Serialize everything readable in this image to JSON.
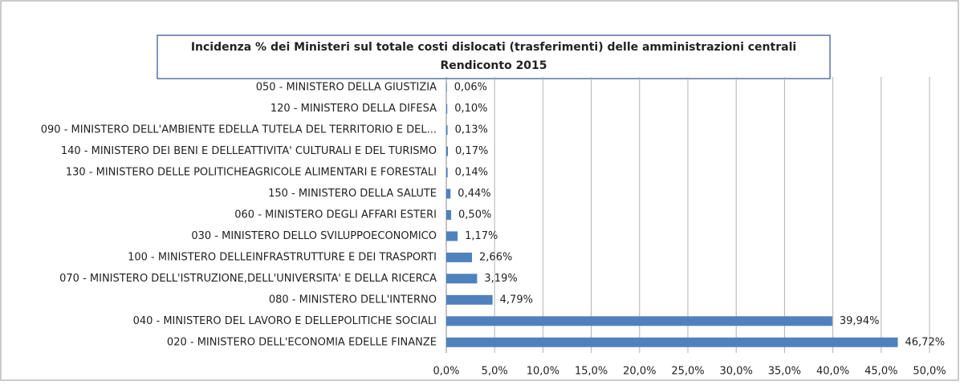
{
  "chart_data": {
    "type": "bar",
    "orientation": "horizontal",
    "title": "Incidenza % dei Ministeri sul totale costi dislocati (trasferimenti) delle amministrazioni centrali",
    "subtitle": "Rendiconto 2015",
    "categories": [
      "050 - MINISTERO DELLA GIUSTIZIA",
      "120 - MINISTERO DELLA DIFESA",
      "090 - MINISTERO DELL'AMBIENTE EDELLA TUTELA DEL TERRITORIO E DEL...",
      "140 - MINISTERO DEI BENI E DELLEATTIVITA' CULTURALI E DEL TURISMO",
      "130 - MINISTERO DELLE POLITICHEAGRICOLE ALIMENTARI E FORESTALI",
      "150 - MINISTERO DELLA SALUTE",
      "060 - MINISTERO DEGLI AFFARI ESTERI",
      "030 - MINISTERO DELLO SVILUPPOECONOMICO",
      "100 - MINISTERO DELLEINFRASTRUTTURE E DEI TRASPORTI",
      "070 - MINISTERO DELL'ISTRUZIONE,DELL'UNIVERSITA' E DELLA RICERCA",
      "080 - MINISTERO DELL'INTERNO",
      "040 - MINISTERO DEL LAVORO E DELLEPOLITICHE SOCIALI",
      "020 - MINISTERO DELL'ECONOMIA EDELLE FINANZE"
    ],
    "values": [
      0.06,
      0.1,
      0.13,
      0.17,
      0.14,
      0.44,
      0.5,
      1.17,
      2.66,
      3.19,
      4.79,
      39.94,
      46.72
    ],
    "value_labels": [
      "0,06%",
      "0,10%",
      "0,13%",
      "0,17%",
      "0,14%",
      "0,44%",
      "0,50%",
      "1,17%",
      "2,66%",
      "3,19%",
      "4,79%",
      "39,94%",
      "46,72%"
    ],
    "color": "#4f81bd",
    "xlim": [
      0,
      50
    ],
    "xticks": [
      {
        "value": 0,
        "label": "0,0%"
      },
      {
        "value": 5,
        "label": "5,0%"
      },
      {
        "value": 10,
        "label": "10,0%"
      },
      {
        "value": 15,
        "label": "15,0%"
      },
      {
        "value": 20,
        "label": "20,0%"
      },
      {
        "value": 25,
        "label": "25,0%"
      },
      {
        "value": 30,
        "label": "30,0%"
      },
      {
        "value": 35,
        "label": "35,0%"
      },
      {
        "value": 40,
        "label": "40,0%"
      },
      {
        "value": 45,
        "label": "45,0%"
      },
      {
        "value": 50,
        "label": "50,0%"
      }
    ],
    "grid": true
  }
}
